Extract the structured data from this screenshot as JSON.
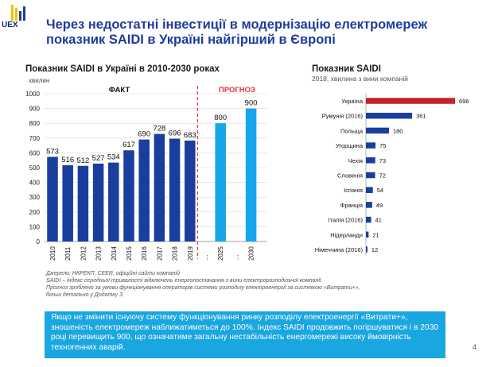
{
  "logo": {
    "text": "UEX"
  },
  "title": "Через недостатні інвестиції в модернізацію електромереж показник SAIDI в Україні найгірший в Європі",
  "chart_data": [
    {
      "type": "bar",
      "title": "Показник SAIDI в Україні в 2010-2030 роках",
      "ylabel": "хвилин",
      "ylim": [
        0,
        1000
      ],
      "yticks": [
        0,
        100,
        200,
        300,
        400,
        500,
        600,
        700,
        800,
        900,
        1000
      ],
      "section_labels": {
        "fact": "ФАКТ",
        "forecast": "ПРОГНОЗ"
      },
      "categories": [
        "2010",
        "2011",
        "2012",
        "2013",
        "2014",
        "2015",
        "2016",
        "2017",
        "2018",
        "2019",
        "…",
        "2025",
        "…",
        "2030"
      ],
      "values": [
        573,
        516,
        512,
        527,
        534,
        617,
        690,
        728,
        696,
        683,
        null,
        800,
        null,
        900
      ],
      "colors": {
        "fact": "#1a3e9e",
        "forecast": "#16a6ea",
        "divider": "#e8343c"
      }
    },
    {
      "type": "bar",
      "orientation": "horizontal",
      "title": "Показник SAIDI",
      "subtitle": "2018, хвилина з вини компаній",
      "categories": [
        "Україна",
        "Румунія (2016)",
        "Польща",
        "Угорщина",
        "Чехія",
        "Словенія",
        "Іспанія",
        "Франція",
        "Італія (2016)",
        "Нідерланди",
        "Німеччина (2016)"
      ],
      "values": [
        696,
        361,
        180,
        75,
        73,
        72,
        54,
        49,
        41,
        21,
        12
      ],
      "max": 696,
      "colors": {
        "highlight": "#c8202b",
        "other": "#1a3e9e"
      }
    }
  ],
  "source_notes": [
    "Джерело: НКРЕКП, CEER, офіційні сайти компаній",
    "SAIDI – індекс середньої тривалості відключень енергопостачання з вини електророзподільчої компанії",
    "Прогноз зроблено за умови  функціонування операторів  системи розподілу електроенергії за системою «Витрати+»,",
    "більш детально у Додатку 3."
  ],
  "callout": "Якщо не змінити існуючу систему функціонування ринку розподілу електроенергії «Витрати+», зношеність електромереж наближатиметься до 100%. Індекс SAIDI продовжить погіршуватися і в 2030 році перевищить 900, що означатиме загальну нестабільність енергомережі високу ймовірність техногенних аварій.",
  "page_number": "4"
}
